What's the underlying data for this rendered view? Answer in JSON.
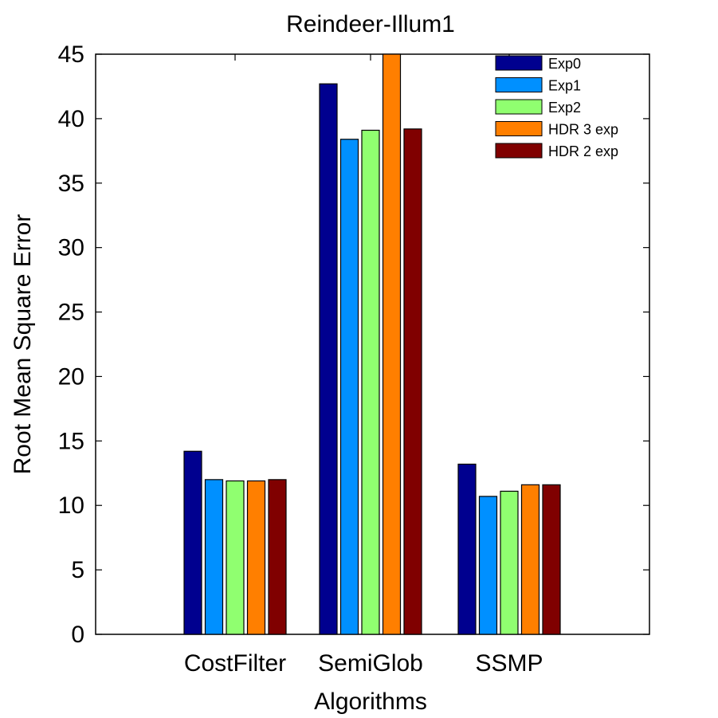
{
  "chart_data": {
    "type": "bar",
    "title": "Reindeer-Illum1",
    "xlabel": "Algorithms",
    "ylabel": "Root Mean Square Error",
    "categories": [
      "CostFilter",
      "SemiGlob",
      "SSMP"
    ],
    "ylim": [
      0,
      45
    ],
    "yticks": [
      0,
      5,
      10,
      15,
      20,
      25,
      30,
      35,
      40,
      45
    ],
    "grid": false,
    "legend_position": "top-right",
    "series": [
      {
        "name": "Exp0",
        "color": "#00008f",
        "values": [
          14.2,
          42.7,
          13.2
        ]
      },
      {
        "name": "Exp1",
        "color": "#0090ff",
        "values": [
          12.0,
          38.4,
          10.7
        ]
      },
      {
        "name": "Exp2",
        "color": "#90ff70",
        "values": [
          11.9,
          39.1,
          11.1
        ]
      },
      {
        "name": "HDR 3 exp",
        "color": "#ff7f00",
        "values": [
          11.9,
          45.0,
          11.6
        ]
      },
      {
        "name": "HDR 2 exp",
        "color": "#800000",
        "values": [
          12.0,
          39.2,
          11.6
        ]
      }
    ]
  }
}
